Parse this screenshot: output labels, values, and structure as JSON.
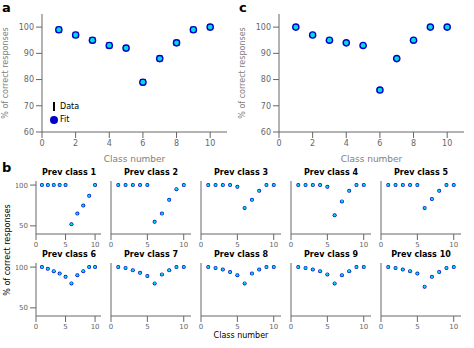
{
  "chart_data": [
    {
      "type": "scatter",
      "title": "a",
      "x": [
        1,
        2,
        3,
        4,
        5,
        6,
        7,
        8,
        9,
        10
      ],
      "series": [
        {
          "name": "Fit",
          "color": "#0000CC",
          "values": [
            99,
            97,
            95,
            93,
            92,
            79,
            88,
            94,
            99,
            100
          ]
        },
        {
          "name": "Data",
          "color": "#00DDDD",
          "values": [
            99,
            97,
            95,
            93,
            92,
            79,
            88,
            94,
            99,
            100
          ],
          "yerr": 1
        }
      ],
      "xlim": [
        0,
        11
      ],
      "ylim": [
        60,
        105
      ],
      "xticks": [
        0,
        2,
        4,
        6,
        8,
        10
      ],
      "yticks": [
        60,
        70,
        80,
        90,
        100
      ],
      "xlabel": "Class number",
      "ylabel": "% of correct responses",
      "legend": "lower left"
    },
    {
      "type": "scatter",
      "title": "c",
      "x": [
        1,
        2,
        3,
        4,
        5,
        6,
        7,
        8,
        9,
        10
      ],
      "series": [
        {
          "color": "#0000CC",
          "values": [
            100,
            97,
            95,
            94,
            93,
            76,
            88,
            95,
            100,
            100
          ]
        },
        {
          "color": "#00DDDD",
          "values": [
            100,
            97,
            95,
            94,
            93,
            76,
            88,
            95,
            100,
            100
          ]
        }
      ],
      "xlim": [
        0,
        11
      ],
      "ylim": [
        60,
        105
      ],
      "xticks": [
        0,
        2,
        4,
        6,
        8,
        10
      ],
      "yticks": [
        60,
        70,
        80,
        90,
        100
      ],
      "xlabel": "Class number",
      "ylabel": "% of correct responses"
    },
    {
      "type": "scatter",
      "title": "Prev class 1",
      "annotations": [
        "b"
      ],
      "ylabel": "% of correct responses",
      "x": [
        1,
        2,
        3,
        4,
        5,
        6,
        7,
        8,
        9,
        10
      ],
      "series": [
        {
          "color": "#0000CC",
          "values": [
            100,
            100,
            100,
            100,
            100,
            52,
            65,
            75,
            87,
            100
          ]
        },
        {
          "color": "#00DDDD",
          "values": [
            100,
            100,
            100,
            100,
            100,
            52,
            65,
            75,
            87,
            100
          ]
        }
      ],
      "xlim": [
        0,
        11
      ],
      "ylim": [
        40,
        105
      ],
      "xticks": [
        0,
        5,
        10
      ],
      "yticks": [
        50,
        100
      ]
    },
    {
      "type": "scatter",
      "title": "Prev class 2",
      "tick_labels": "x",
      "x": [
        1,
        2,
        3,
        4,
        5,
        6,
        7,
        8,
        9,
        10
      ],
      "series": [
        {
          "color": "#0000CC",
          "values": [
            100,
            100,
            100,
            100,
            100,
            55,
            65,
            82,
            95,
            100
          ]
        },
        {
          "color": "#00DDDD",
          "values": [
            100,
            100,
            100,
            100,
            100,
            55,
            65,
            82,
            95,
            100
          ]
        }
      ],
      "xlim": [
        0,
        11
      ],
      "ylim": [
        40,
        105
      ],
      "xticks": [
        0,
        5,
        10
      ],
      "yticks": [
        50,
        100
      ]
    },
    {
      "type": "scatter",
      "title": "Prev class 3",
      "tick_labels": "x",
      "x": [
        1,
        2,
        3,
        4,
        5,
        6,
        7,
        8,
        9,
        10
      ],
      "series": [
        {
          "color": "#0000CC",
          "values": [
            100,
            100,
            100,
            100,
            98,
            72,
            82,
            93,
            100,
            100
          ]
        },
        {
          "color": "#00DDDD",
          "values": [
            100,
            100,
            100,
            100,
            98,
            72,
            82,
            93,
            100,
            100
          ]
        }
      ],
      "xlim": [
        0,
        11
      ],
      "ylim": [
        40,
        105
      ],
      "xticks": [
        0,
        5,
        10
      ],
      "yticks": [
        50,
        100
      ]
    },
    {
      "type": "scatter",
      "title": "Prev class 4",
      "tick_labels": "x",
      "x": [
        1,
        2,
        3,
        4,
        5,
        6,
        7,
        8,
        9,
        10
      ],
      "series": [
        {
          "color": "#0000CC",
          "values": [
            100,
            100,
            100,
            100,
            98,
            63,
            80,
            93,
            100,
            100
          ]
        },
        {
          "color": "#00DDDD",
          "values": [
            100,
            100,
            100,
            100,
            98,
            63,
            80,
            93,
            100,
            100
          ]
        }
      ],
      "xlim": [
        0,
        11
      ],
      "ylim": [
        40,
        105
      ],
      "xticks": [
        0,
        5,
        10
      ],
      "yticks": [
        50,
        100
      ]
    },
    {
      "type": "scatter",
      "title": "Prev class 5",
      "tick_labels": "x",
      "x": [
        1,
        2,
        3,
        4,
        5,
        6,
        7,
        8,
        9,
        10
      ],
      "series": [
        {
          "color": "#0000CC",
          "values": [
            100,
            100,
            100,
            100,
            100,
            72,
            83,
            93,
            100,
            100
          ]
        },
        {
          "color": "#00DDDD",
          "values": [
            100,
            100,
            100,
            100,
            100,
            72,
            83,
            93,
            100,
            100
          ]
        }
      ],
      "xlim": [
        0,
        11
      ],
      "ylim": [
        40,
        105
      ],
      "xticks": [
        0,
        5,
        10
      ],
      "yticks": [
        50,
        100
      ]
    },
    {
      "type": "scatter",
      "title": "Prev class 6",
      "x": [
        1,
        2,
        3,
        4,
        5,
        6,
        7,
        8,
        9,
        10
      ],
      "series": [
        {
          "color": "#0000CC",
          "values": [
            100,
            98,
            95,
            92,
            88,
            80,
            90,
            95,
            100,
            100
          ]
        },
        {
          "color": "#00DDDD",
          "values": [
            100,
            98,
            95,
            92,
            88,
            80,
            90,
            95,
            100,
            100
          ]
        }
      ],
      "xlim": [
        0,
        11
      ],
      "ylim": [
        40,
        105
      ],
      "xticks": [
        0,
        5,
        10
      ],
      "yticks": [
        50,
        100
      ]
    },
    {
      "type": "scatter",
      "title": "Prev class 7",
      "tick_labels": "x",
      "x": [
        1,
        2,
        3,
        4,
        5,
        6,
        7,
        8,
        9,
        10
      ],
      "series": [
        {
          "color": "#0000CC",
          "values": [
            100,
            99,
            96,
            93,
            89,
            80,
            91,
            96,
            100,
            100
          ]
        },
        {
          "color": "#00DDDD",
          "values": [
            100,
            99,
            96,
            93,
            89,
            80,
            91,
            96,
            100,
            100
          ]
        }
      ],
      "xlim": [
        0,
        11
      ],
      "ylim": [
        40,
        105
      ],
      "xticks": [
        0,
        5,
        10
      ],
      "yticks": [
        50,
        100
      ]
    },
    {
      "type": "scatter",
      "title": "Prev class 8",
      "tick_labels": "x",
      "xlabel": "Class number",
      "x": [
        1,
        2,
        3,
        4,
        5,
        6,
        7,
        8,
        9,
        10
      ],
      "series": [
        {
          "color": "#0000CC",
          "values": [
            100,
            99,
            97,
            94,
            90,
            80,
            92,
            97,
            100,
            100
          ]
        },
        {
          "color": "#00DDDD",
          "values": [
            100,
            99,
            97,
            94,
            90,
            80,
            92,
            97,
            100,
            100
          ]
        }
      ],
      "xlim": [
        0,
        11
      ],
      "ylim": [
        40,
        105
      ],
      "xticks": [
        0,
        5,
        10
      ],
      "yticks": [
        50,
        100
      ]
    },
    {
      "type": "scatter",
      "title": "Prev class 9",
      "tick_labels": "x",
      "x": [
        1,
        2,
        3,
        4,
        5,
        6,
        7,
        8,
        9,
        10
      ],
      "series": [
        {
          "color": "#0000CC",
          "values": [
            100,
            99,
            97,
            95,
            91,
            80,
            90,
            95,
            100,
            100
          ]
        },
        {
          "color": "#00DDDD",
          "values": [
            100,
            99,
            97,
            95,
            91,
            80,
            90,
            95,
            100,
            100
          ]
        }
      ],
      "xlim": [
        0,
        11
      ],
      "ylim": [
        40,
        105
      ],
      "xticks": [
        0,
        5,
        10
      ],
      "yticks": [
        50,
        100
      ]
    },
    {
      "type": "scatter",
      "title": "Prev class 10",
      "tick_labels": "x",
      "x": [
        1,
        2,
        3,
        4,
        5,
        6,
        7,
        8,
        9,
        10
      ],
      "series": [
        {
          "color": "#0000CC",
          "values": [
            100,
            99,
            97,
            95,
            92,
            76,
            88,
            94,
            99,
            100
          ]
        },
        {
          "color": "#00DDDD",
          "values": [
            100,
            99,
            97,
            95,
            92,
            76,
            88,
            94,
            99,
            100
          ]
        }
      ],
      "xlim": [
        0,
        11
      ],
      "ylim": [
        40,
        105
      ],
      "xticks": [
        0,
        5,
        10
      ],
      "yticks": [
        50,
        100
      ]
    }
  ]
}
